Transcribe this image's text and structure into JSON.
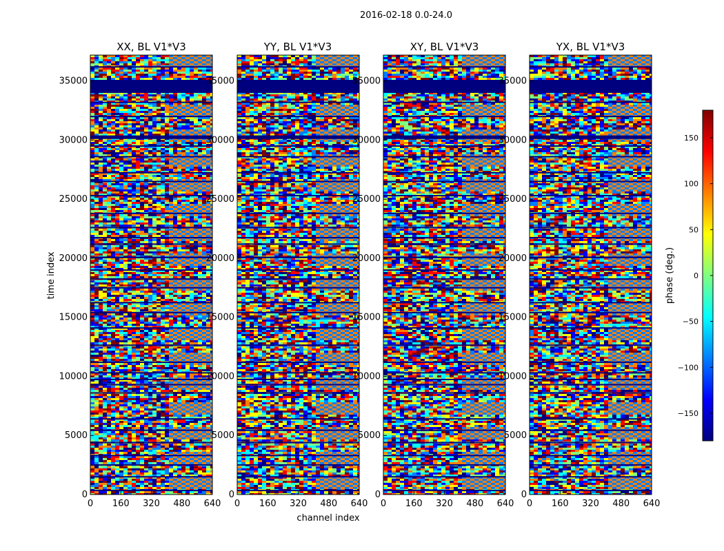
{
  "chart_data": {
    "type": "heatmap",
    "suptitle": "2016-02-18 0.0-24.0",
    "xlabel": "channel index",
    "ylabel": "time index",
    "xlim": [
      0,
      640
    ],
    "ylim": [
      0,
      37200
    ],
    "xticks": [
      0,
      160,
      320,
      480,
      640
    ],
    "yticks": [
      0,
      5000,
      10000,
      15000,
      20000,
      25000,
      30000,
      35000
    ],
    "panels": [
      {
        "title": "XX, BL V1*V3"
      },
      {
        "title": "YY, BL V1*V3"
      },
      {
        "title": "XY, BL V1*V3"
      },
      {
        "title": "YX, BL V1*V3"
      }
    ],
    "colorbar": {
      "label": "phase (deg.)",
      "range": [
        -180,
        180
      ],
      "ticks": [
        -150,
        -100,
        -50,
        0,
        50,
        100,
        150
      ],
      "colormap": "jet",
      "colors": [
        "#00007f",
        "#0000ff",
        "#007fff",
        "#00ffff",
        "#7fff7f",
        "#ffff00",
        "#ff7f00",
        "#ff0000",
        "#7f0000"
      ]
    },
    "flagged_bands": [
      [
        34000,
        35100
      ],
      [
        30100,
        30400
      ],
      [
        27200,
        27300
      ],
      [
        21700,
        21800
      ],
      [
        20000,
        20150
      ],
      [
        18200,
        18300
      ],
      [
        16200,
        16300
      ],
      [
        12600,
        12700
      ],
      [
        9700,
        9800
      ],
      [
        5400,
        5500
      ],
      [
        300,
        400
      ]
    ],
    "gap_lines": [
      36200,
      33200,
      32000,
      29500,
      28600,
      26500,
      25300,
      23800,
      22600,
      21200,
      19000,
      17500,
      15400,
      14100,
      11200,
      10300,
      9300,
      8600,
      6400,
      4400,
      3300,
      2500,
      1500
    ]
  }
}
